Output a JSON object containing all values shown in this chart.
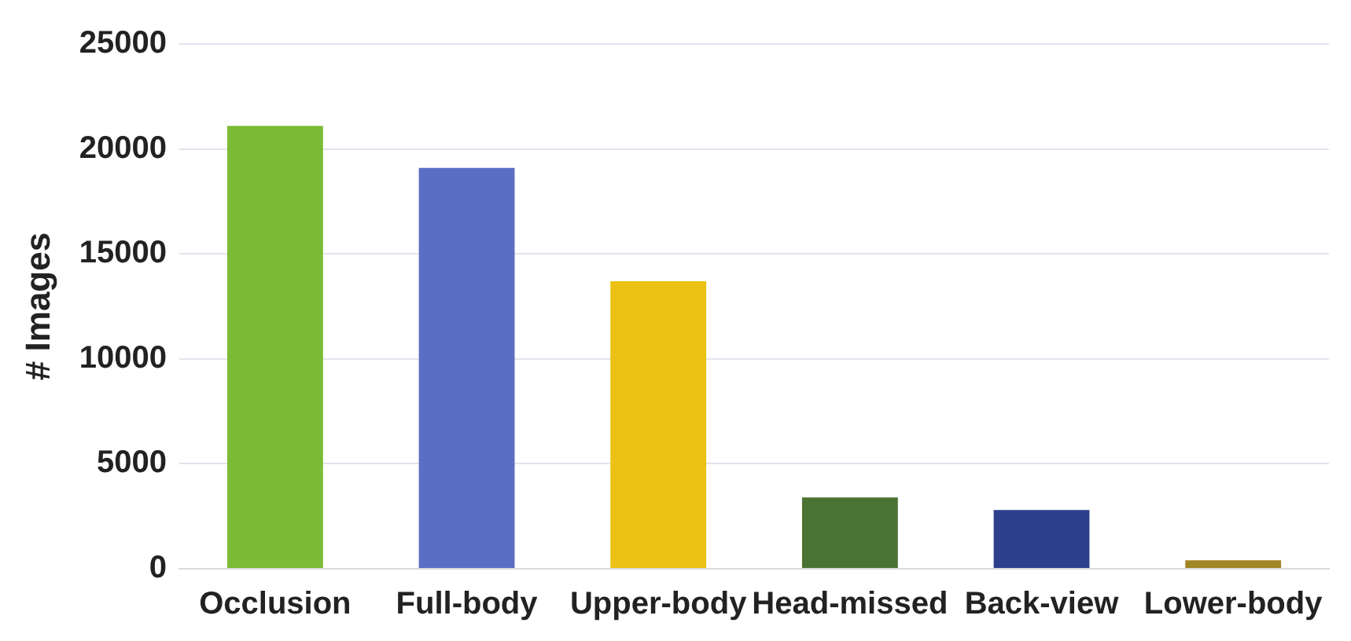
{
  "chart_data": {
    "type": "bar",
    "ylabel": "# Images",
    "categories": [
      "Occlusion",
      "Full-body",
      "Upper-body",
      "Head-missed",
      "Back-view",
      "Lower-body"
    ],
    "values": [
      21100,
      19100,
      13700,
      3400,
      2800,
      400
    ],
    "colors": [
      "#7cbb35",
      "#5a6ec4",
      "#ebc214",
      "#4a7232",
      "#2c3f8c",
      "#a08624"
    ],
    "ylim": [
      0,
      25000
    ],
    "yticks": [
      0,
      5000,
      10000,
      15000,
      20000,
      25000
    ],
    "grid": "y"
  }
}
